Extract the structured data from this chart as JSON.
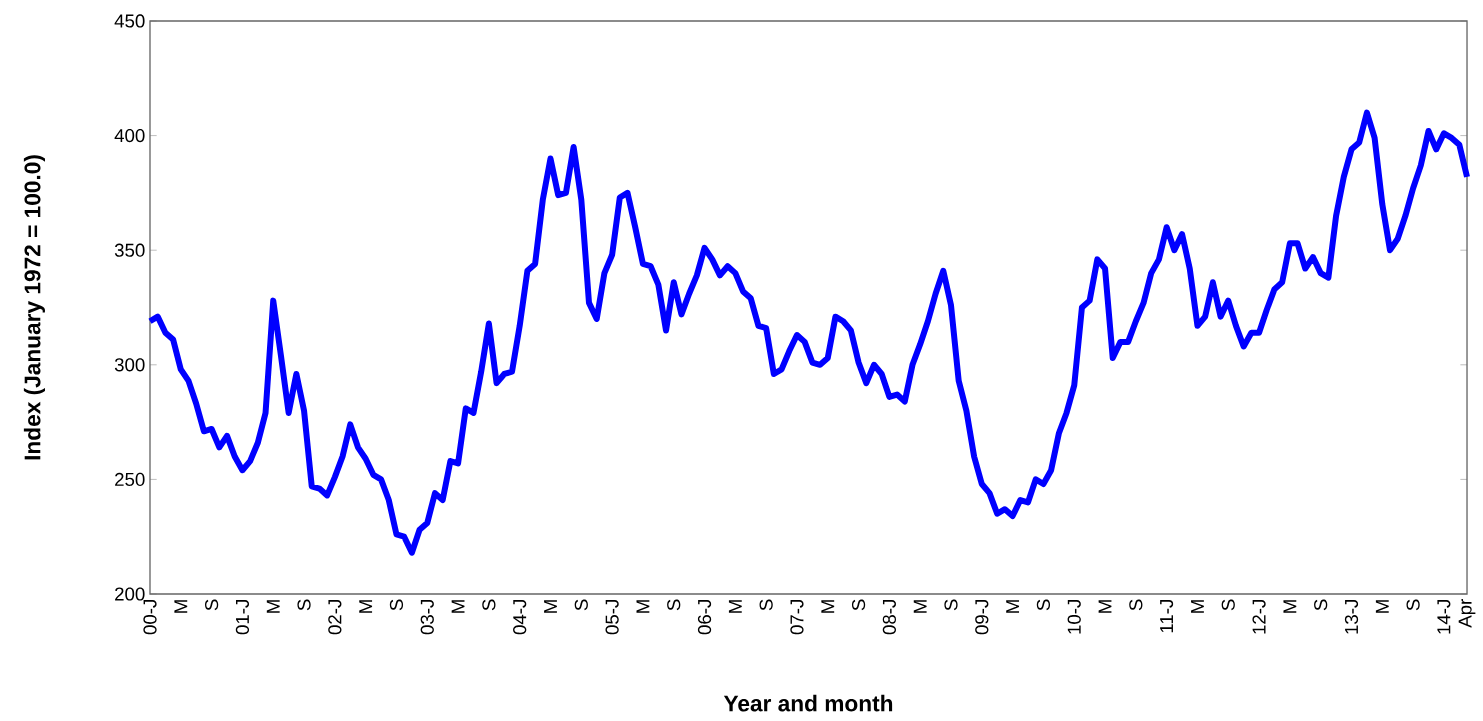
{
  "chart_data": {
    "type": "line",
    "xlabel": "Year and month",
    "ylabel": "Index (January 1972 = 100.0)",
    "categories": [
      "00-J",
      null,
      null,
      null,
      "M",
      null,
      null,
      null,
      "S",
      null,
      null,
      null,
      "01-J",
      null,
      null,
      null,
      "M",
      null,
      null,
      null,
      "S",
      null,
      null,
      null,
      "02-J",
      null,
      null,
      null,
      "M",
      null,
      null,
      null,
      "S",
      null,
      null,
      null,
      "03-J",
      null,
      null,
      null,
      "M",
      null,
      null,
      null,
      "S",
      null,
      null,
      null,
      "04-J",
      null,
      null,
      null,
      "M",
      null,
      null,
      null,
      "S",
      null,
      null,
      null,
      "05-J",
      null,
      null,
      null,
      "M",
      null,
      null,
      null,
      "S",
      null,
      null,
      null,
      "06-J",
      null,
      null,
      null,
      "M",
      null,
      null,
      null,
      "S",
      null,
      null,
      null,
      "07-J",
      null,
      null,
      null,
      "M",
      null,
      null,
      null,
      "S",
      null,
      null,
      null,
      "08-J",
      null,
      null,
      null,
      "M",
      null,
      null,
      null,
      "S",
      null,
      null,
      null,
      "09-J",
      null,
      null,
      null,
      "M",
      null,
      null,
      null,
      "S",
      null,
      null,
      null,
      "10-J",
      null,
      null,
      null,
      "M",
      null,
      null,
      null,
      "S",
      null,
      null,
      null,
      "11-J",
      null,
      null,
      null,
      "M",
      null,
      null,
      null,
      "S",
      null,
      null,
      null,
      "12-J",
      null,
      null,
      null,
      "M",
      null,
      null,
      null,
      "S",
      null,
      null,
      null,
      "13-J",
      null,
      null,
      null,
      "M",
      null,
      null,
      null,
      "S",
      null,
      null,
      null,
      "14-J",
      null,
      null,
      "Apr"
    ],
    "values": [
      319,
      321,
      314,
      311,
      298,
      293,
      283,
      271,
      272,
      264,
      269,
      260,
      254,
      258,
      266,
      279,
      328,
      304,
      279,
      296,
      280,
      247,
      246,
      243,
      251,
      260,
      274,
      264,
      259,
      252,
      250,
      241,
      226,
      225,
      218,
      228,
      231,
      244,
      241,
      258,
      257,
      281,
      279,
      297,
      318,
      292,
      296,
      297,
      317,
      341,
      344,
      372,
      390,
      374,
      375,
      395,
      372,
      327,
      320,
      340,
      348,
      373,
      375,
      360,
      344,
      343,
      335,
      315,
      336,
      322,
      331,
      339,
      351,
      346,
      339,
      343,
      340,
      332,
      329,
      317,
      316,
      296,
      298,
      306,
      313,
      310,
      301,
      300,
      303,
      321,
      319,
      315,
      301,
      292,
      300,
      296,
      286,
      287,
      284,
      300,
      309,
      319,
      331,
      341,
      326,
      293,
      280,
      260,
      248,
      244,
      235,
      237,
      234,
      241,
      240,
      250,
      248,
      254,
      270,
      279,
      291,
      325,
      328,
      346,
      342,
      303,
      310,
      310,
      319,
      327,
      340,
      346,
      360,
      350,
      357,
      342,
      317,
      321,
      336,
      321,
      328,
      317,
      308,
      314,
      314,
      324,
      333,
      336,
      353,
      353,
      342,
      347,
      340,
      338,
      365,
      382,
      394,
      397,
      410,
      399,
      370,
      350,
      355,
      365,
      377,
      387,
      402,
      394,
      401,
      399,
      396,
      382
    ],
    "color": "#0000ff",
    "line_style": "solid",
    "ylim": [
      200,
      450
    ],
    "yticks": [
      200,
      250,
      300,
      350,
      400,
      450
    ]
  }
}
